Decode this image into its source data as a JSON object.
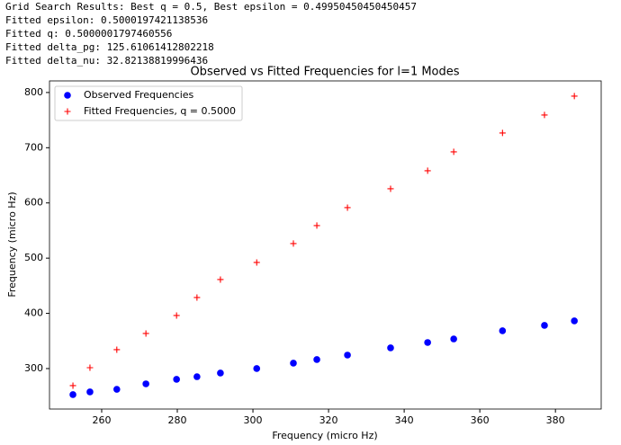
{
  "output_lines": [
    "Grid Search Results: Best q = 0.5, Best epsilon = 0.49950450450450457",
    "Fitted epsilon: 0.5000197421138536",
    "Fitted q: 0.5000001797460556",
    "Fitted delta_pg: 125.61061412802218",
    "Fitted delta_nu: 32.82138819996436"
  ],
  "chart_data": {
    "type": "scatter",
    "title": "Observed vs Fitted Frequencies for l=1 Modes",
    "x_label": "Frequency (micro Hz)",
    "y_label": "Frequency (micro Hz)",
    "x": [
      252.4,
      256.9,
      264.0,
      271.7,
      279.8,
      285.2,
      291.4,
      301.0,
      310.7,
      316.9,
      325.0,
      336.4,
      346.2,
      353.1,
      366.0,
      377.1,
      385.0
    ],
    "series": [
      {
        "name": "Observed Frequencies",
        "color": "#0000ff",
        "marker": "circle",
        "values": [
          252.8,
          257.7,
          262.5,
          272.3,
          280.5,
          285.3,
          291.9,
          300.0,
          309.8,
          316.3,
          324.4,
          337.5,
          347.2,
          353.7,
          368.4,
          378.2,
          386.3
        ]
      },
      {
        "name": "Fitted Frequencies, q = 0.5000",
        "color": "#ff0000",
        "marker": "plus",
        "values": [
          269.1,
          301.6,
          334.2,
          363.5,
          396.1,
          428.7,
          461.2,
          492.2,
          526.4,
          559.0,
          591.5,
          625.7,
          658.3,
          692.5,
          726.7,
          759.3,
          793.5
        ]
      }
    ],
    "xlim": [
      246.2,
      392.1
    ],
    "ylim": [
      226.7,
      821
    ],
    "xticks": [
      260,
      280,
      300,
      320,
      340,
      360,
      380
    ],
    "yticks": [
      300,
      400,
      500,
      600,
      700,
      800
    ],
    "legend": "upper left",
    "grid": false
  }
}
